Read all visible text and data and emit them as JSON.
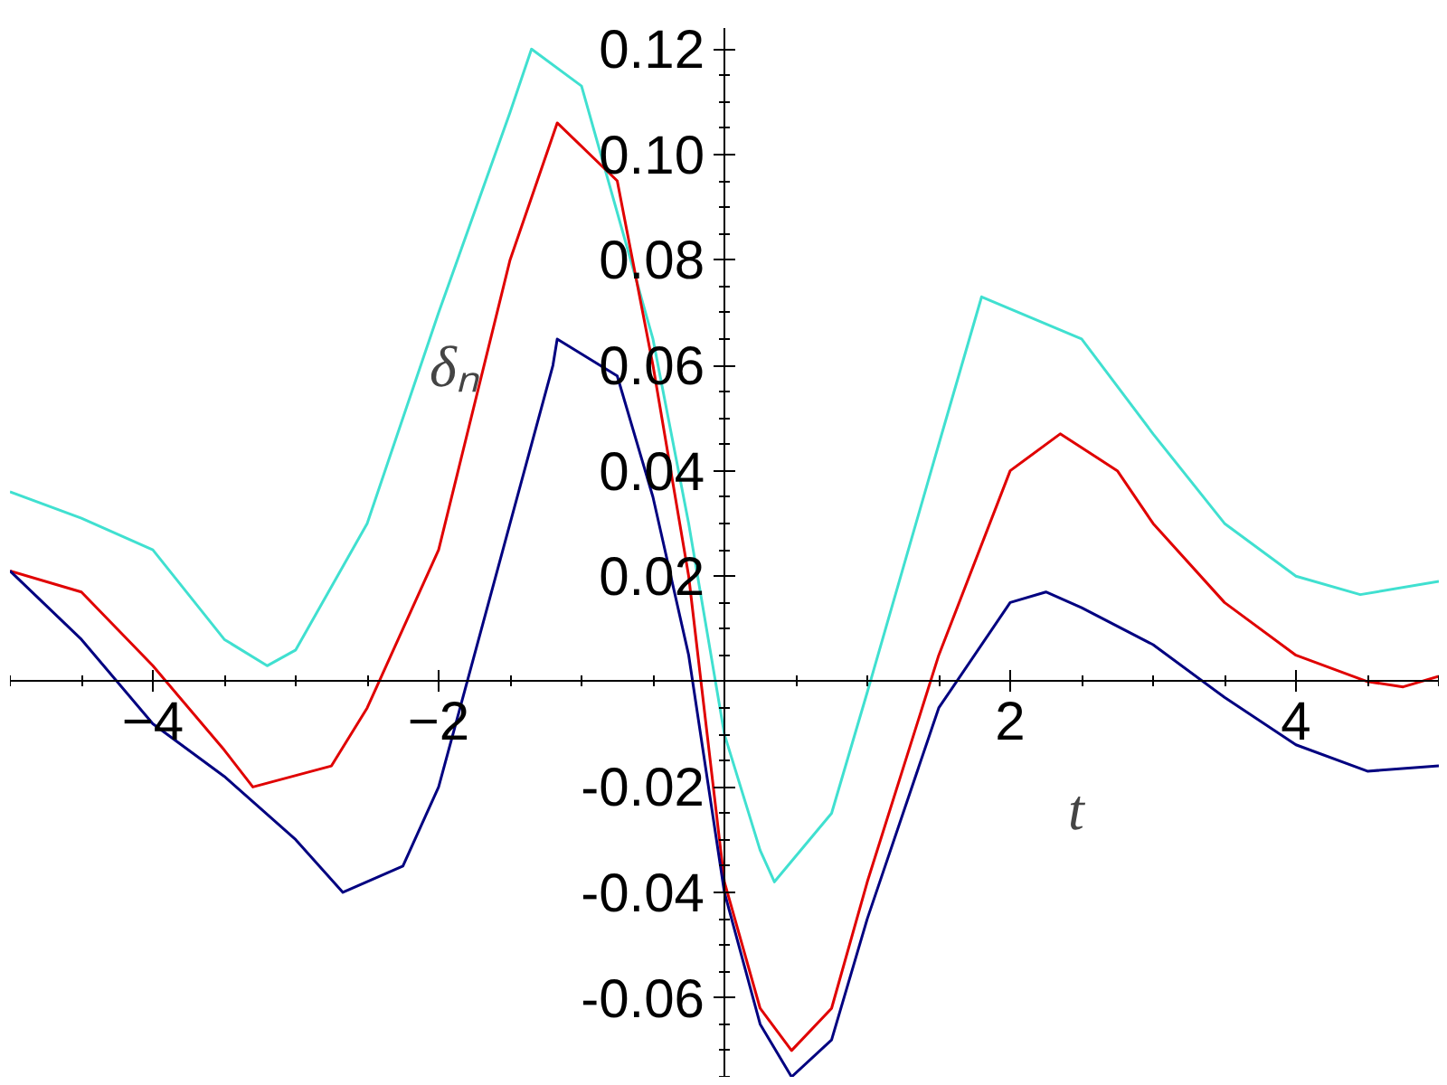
{
  "chart_data": {
    "type": "line",
    "xlabel": "t",
    "ylabel": "δₙ",
    "xlim": [
      -5,
      5
    ],
    "ylim": [
      -0.075,
      0.124
    ],
    "xticks": [
      -4,
      -2,
      2,
      4
    ],
    "yticks": [
      {
        "value": -0.06,
        "label": "-0.06"
      },
      {
        "value": -0.04,
        "label": "-0.04"
      },
      {
        "value": -0.02,
        "label": "-0.02"
      },
      {
        "value": 0.02,
        "label": "0.02"
      },
      {
        "value": 0.04,
        "label": "0.04"
      },
      {
        "value": 0.06,
        "label": "0.06"
      },
      {
        "value": 0.08,
        "label": "0.08"
      },
      {
        "value": 0.1,
        "label": "0.10"
      },
      {
        "value": 0.12,
        "label": "0.12"
      }
    ],
    "grid": false,
    "series": [
      {
        "color": "#40e0d0",
        "x": [
          -5,
          -4.5,
          -4,
          -3.5,
          -3.2,
          -3,
          -2.5,
          -2,
          -1.5,
          -1.35,
          -1,
          -0.5,
          -0.25,
          0,
          0.25,
          0.35,
          0.75,
          1,
          1.5,
          1.8,
          2.5,
          3,
          3.5,
          4,
          4.45,
          5
        ],
        "values": [
          0.036,
          0.031,
          0.025,
          0.008,
          0.003,
          0.006,
          0.03,
          0.07,
          0.108,
          0.12,
          0.113,
          0.065,
          0.03,
          -0.01,
          -0.032,
          -0.038,
          -0.025,
          -0.002,
          0.045,
          0.073,
          0.065,
          0.047,
          0.03,
          0.02,
          0.0165,
          0.019
        ]
      },
      {
        "color": "#e00000",
        "x": [
          -5,
          -4.5,
          -4,
          -3.5,
          -3.3,
          -2.75,
          -2.5,
          -2,
          -1.5,
          -1.17,
          -0.75,
          -0.5,
          -0.25,
          0,
          0.25,
          0.47,
          0.75,
          1,
          1.5,
          2,
          2.35,
          2.75,
          3,
          3.5,
          4,
          4.5,
          4.75,
          5
        ],
        "values": [
          0.021,
          0.017,
          0.003,
          -0.013,
          -0.02,
          -0.016,
          -0.005,
          0.025,
          0.08,
          0.106,
          0.095,
          0.06,
          0.02,
          -0.038,
          -0.062,
          -0.07,
          -0.062,
          -0.038,
          0.005,
          0.04,
          0.047,
          0.04,
          0.03,
          0.015,
          0.005,
          0.0,
          -0.001,
          0.001
        ]
      },
      {
        "color": "#000080",
        "x": [
          -5,
          -4.5,
          -4,
          -3.5,
          -3,
          -2.67,
          -2.25,
          -2,
          -1.5,
          -1.2,
          -1.17,
          -0.75,
          -0.5,
          -0.25,
          0,
          0.25,
          0.47,
          0.75,
          1,
          1.5,
          2,
          2.25,
          2.5,
          3,
          3.5,
          4,
          4.5,
          5
        ],
        "values": [
          0.021,
          0.008,
          -0.008,
          -0.018,
          -0.03,
          -0.04,
          -0.035,
          -0.02,
          0.03,
          0.06,
          0.065,
          0.058,
          0.035,
          0.005,
          -0.04,
          -0.065,
          -0.075,
          -0.068,
          -0.045,
          -0.005,
          0.015,
          0.017,
          0.014,
          0.007,
          -0.003,
          -0.012,
          -0.017,
          -0.016
        ]
      }
    ]
  }
}
